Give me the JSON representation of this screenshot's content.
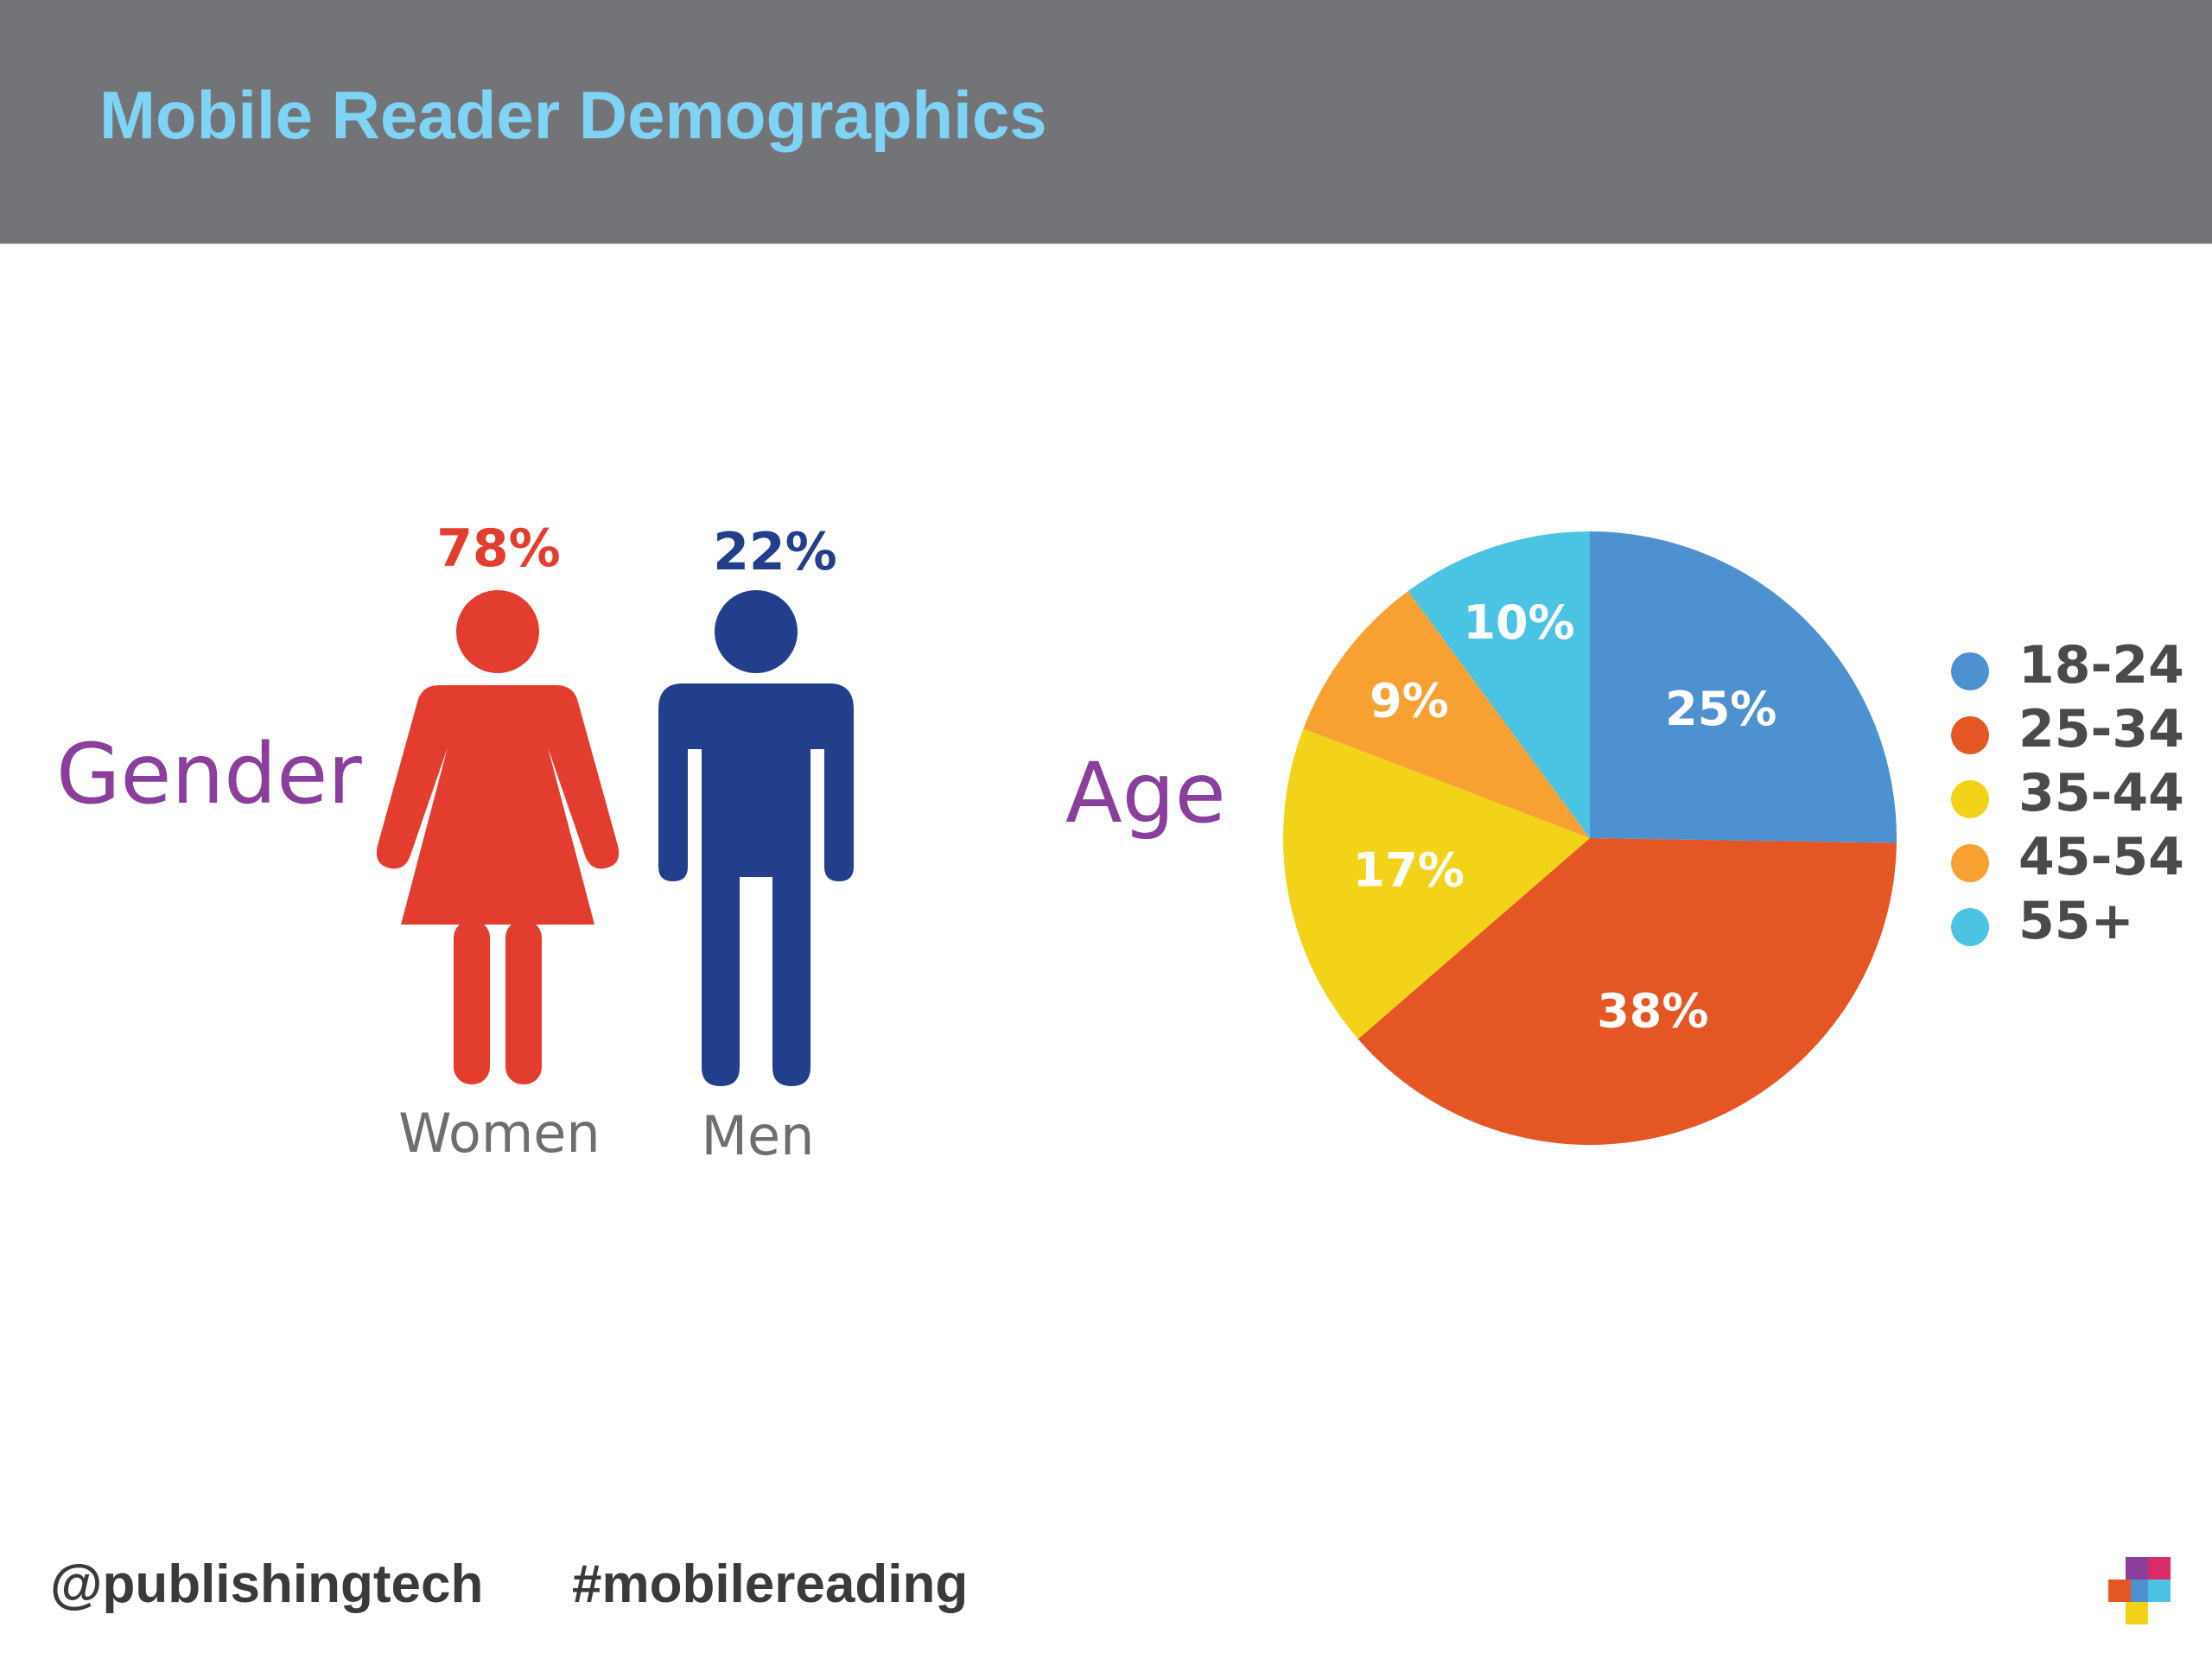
{
  "header": {
    "title": "Mobile Reader Demographics"
  },
  "gender": {
    "label": "Gender",
    "women": {
      "label": "Women",
      "percent": "78%",
      "color": "#e33d30"
    },
    "men": {
      "label": "Men",
      "percent": "22%",
      "color": "#233f8b"
    }
  },
  "age": {
    "label": "Age"
  },
  "chart_data": {
    "type": "pie",
    "title": "",
    "categories": [
      "18-24",
      "25-34",
      "35-44",
      "45-54",
      "55+"
    ],
    "values": [
      25,
      38,
      17,
      9,
      10
    ],
    "labels": [
      "25%",
      "38%",
      "17%",
      "9%",
      "10%"
    ],
    "colors": [
      "#4e91d0",
      "#e45624",
      "#f2d31a",
      "#f7a132",
      "#4bc4e4"
    ],
    "start": "12 o'clock, clockwise",
    "legend": "right"
  },
  "footer": {
    "handle": "@publishingtech",
    "hashtag": "#mobilereading"
  },
  "logo": {
    "icon": "publishing-technology-logo-icon"
  }
}
